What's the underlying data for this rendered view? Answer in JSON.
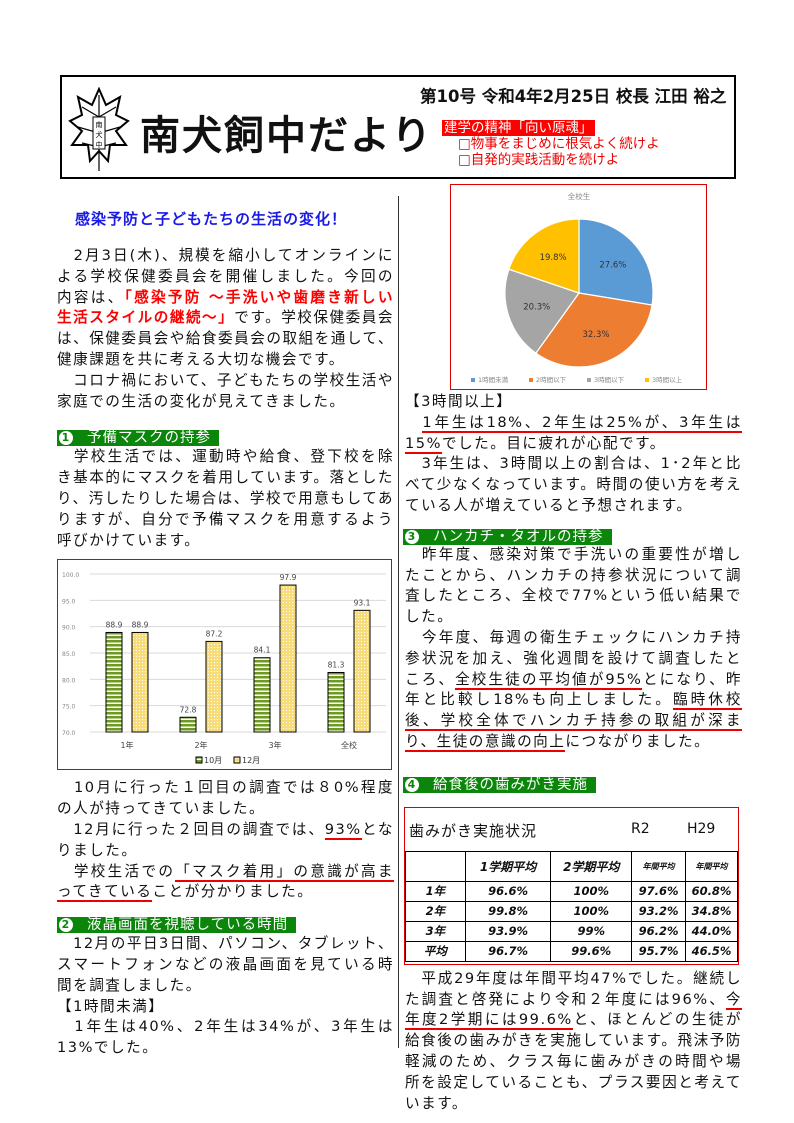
{
  "header": {
    "issue": "第10号 令和4年2月25日 校長 江田 裕之",
    "title": "南犬飼中だより",
    "motto_title": "建学の精神「向い原魂」",
    "motto_lines": [
      "□物事をまじめに根気よく続けよ",
      "□自発的実践活動を続けよ"
    ],
    "logo_text": "南犬中"
  },
  "main_title": "感染予防と子どもたちの生活の変化！",
  "paragraphs": {
    "intro": [
      {
        "t": "　2月3日(木)、規模を縮小してオンラインによる学校保健委員会を開催しました。今回の内容は、"
      },
      {
        "t": "「感染予防 ～手洗いや歯磨き新しい生活スタイルの継続～」",
        "m": "red-bold"
      },
      {
        "t": "です。学校保健委員会は、保健委員会や給食委員会の取組を通して、健康課題を共に考える大切な機会です。"
      },
      {
        "t": "\n　コロナ禍において、子どもたちの学校生活や家庭での生活の変化が見えてきました。"
      }
    ],
    "mask": [
      {
        "t": "　学校生活では、運動時や給食、登下校を除き基本的にマスクを着用しています。落としたり、汚したりした場合は、学校で用意もしてありますが、自分で予備マスクを用意するよう呼びかけています。"
      }
    ],
    "mask_result": [
      {
        "t": "　10月に行った１回目の調査では８0%程度の人が持ってきていました。\n　12月に行った２回目の調査では、"
      },
      {
        "t": "93%",
        "m": "ul"
      },
      {
        "t": "となりました。\n　学校生活での"
      },
      {
        "t": "「マスク着用」の意識が高まってきている",
        "m": "ul"
      },
      {
        "t": "ことが分かりました。"
      }
    ],
    "screen": [
      {
        "t": "　12月の平日3日間、パソコン、タブレット、スマートフォンなどの液晶画面を見ている時間を調査しました。\n【1時間未満】\n　1年生は40%、2年生は34%が、3年生は13%でした。"
      }
    ],
    "screen2": [
      {
        "t": "【3時間以上】\n　"
      },
      {
        "t": "1年生は18%、2年生は25%が、3年生は15%",
        "m": "ul"
      },
      {
        "t": "でした。目に疲れが心配です。\n　3年生は、3時間以上の割合は、1･2年と比べて少なくなっています。時間の使い方を考えている人が増えていると予想されます。"
      }
    ],
    "towel": [
      {
        "t": "　昨年度、感染対策で手洗いの重要性が増したことから、ハンカチの持参状況について調査したところ、全校で77%という低い結果でした。\n　今年度、毎週の衛生チェックにハンカチ持参状況を加え、強化週間を設けて調査したところ、"
      },
      {
        "t": "全校生徒の平均値が95%",
        "m": "ul"
      },
      {
        "t": "とになり、昨年と比較し18%も向上しました。"
      },
      {
        "t": "臨時休校後、学校全体でハンカチ持参の取組が深まり、生徒の意識の向上",
        "m": "ul"
      },
      {
        "t": "につながりました。"
      }
    ],
    "teeth": [
      {
        "t": "　平成29年度は年間平均47%でした。継続した調査と啓発により令和２年度には96%、"
      },
      {
        "t": "今年度2学期には99.6%",
        "m": "ul"
      },
      {
        "t": "と、ほとんどの生徒が給食後の歯みがきを実施しています。飛沫予防軽減のため、クラス毎に歯みがきの時間や場所を設定していることも、プラス要因と考えています。"
      }
    ]
  },
  "sections": [
    {
      "num": "1",
      "label": "予備マスクの持参"
    },
    {
      "num": "2",
      "label": "液晶画面を視聴している時間"
    },
    {
      "num": "3",
      "label": "ハンカチ・タオルの持参"
    },
    {
      "num": "4",
      "label": "給食後の歯みがき実施"
    }
  ],
  "table": {
    "title": "歯みがき実施状況",
    "r2": "R2",
    "h29": "H29",
    "headers": [
      "",
      "1学期平均",
      "2学期平均",
      "年間平均",
      "年間平均"
    ],
    "rows": [
      [
        "1年",
        "96.6%",
        "100%",
        "97.6%",
        "60.8%"
      ],
      [
        "2年",
        "99.8%",
        "100%",
        "93.2%",
        "34.8%"
      ],
      [
        "3年",
        "93.9%",
        "99%",
        "96.2%",
        "44.0%"
      ],
      [
        "平均",
        "96.7%",
        "99.6%",
        "95.7%",
        "46.5%"
      ]
    ]
  },
  "chart_data": [
    {
      "type": "bar",
      "categories": [
        "1年",
        "2年",
        "3年",
        "全校"
      ],
      "series": [
        {
          "name": "10月",
          "values": [
            88.9,
            72.8,
            84.1,
            81.3
          ],
          "color": "#6f9a22"
        },
        {
          "name": "12月",
          "values": [
            88.9,
            87.2,
            97.9,
            93.1
          ],
          "color": "#f7dc7c"
        }
      ],
      "ylim": [
        70,
        100
      ],
      "yticks": [
        "70.0",
        "75.0",
        "80.0",
        "85.0",
        "90.0",
        "95.0",
        "100.0"
      ],
      "grid": true,
      "legend": "bottom"
    },
    {
      "type": "pie",
      "title": "全校生",
      "slices": [
        {
          "name": "1時間未満",
          "value": 27.6,
          "label": "27.6%",
          "color": "#5B9BD5"
        },
        {
          "name": "2時間以下",
          "value": 32.3,
          "label": "32.3%",
          "color": "#ED7D31"
        },
        {
          "name": "3時間以下",
          "value": 20.3,
          "label": "20.3%",
          "color": "#A5A5A5"
        },
        {
          "name": "3時間以上",
          "value": 19.8,
          "label": "19.8%",
          "color": "#FFC000"
        }
      ],
      "legend": "bottom"
    }
  ]
}
